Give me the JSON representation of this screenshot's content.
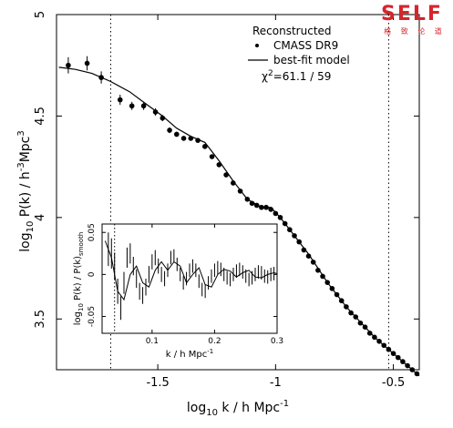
{
  "chart_data": [
    {
      "type": "scatter",
      "xlabel_parts": {
        "pre": "log",
        "sub": "10",
        "post": " k  /  h  Mpc",
        "sup": "-1"
      },
      "ylabel_parts": {
        "pre": "log",
        "sub": "10",
        "mid": " P(k)  /  h",
        "sup1": "-3",
        "mid2": "Mpc",
        "sup2": "3"
      },
      "xlim": [
        -1.93,
        -0.39
      ],
      "ylim": [
        3.25,
        5.0
      ],
      "xticks": [
        -1.5,
        -1.0,
        -0.5
      ],
      "xtick_labels": [
        "-1.5",
        "-1",
        "-0.5"
      ],
      "yticks": [
        3.5,
        4.0,
        4.5,
        5.0
      ],
      "ytick_labels": [
        "3.5",
        "4",
        "4.5",
        "5"
      ],
      "legend": {
        "title": "Reconstructed",
        "entries": [
          "CMASS DR9",
          "best-fit model"
        ],
        "chi2_prefix": "χ",
        "chi2_sup": "2",
        "chi2_value": "=61.1 / 59",
        "position": "top-right"
      },
      "vlines": [
        -1.7,
        -0.52
      ],
      "series": [
        {
          "kind": "points",
          "x": [
            -1.88,
            -1.8,
            -1.74,
            -1.66,
            -1.61,
            -1.56,
            -1.51,
            -1.48,
            -1.45,
            -1.42,
            -1.39,
            -1.36,
            -1.33,
            -1.3,
            -1.27,
            -1.24,
            -1.21,
            -1.18,
            -1.15,
            -1.12,
            -1.1,
            -1.08,
            -1.06,
            -1.04,
            -1.02,
            -1.0,
            -0.98,
            -0.96,
            -0.94,
            -0.92,
            -0.9,
            -0.88,
            -0.86,
            -0.84,
            -0.82,
            -0.8,
            -0.78,
            -0.76,
            -0.74,
            -0.72,
            -0.7,
            -0.68,
            -0.66,
            -0.64,
            -0.62,
            -0.6,
            -0.58,
            -0.56,
            -0.54,
            -0.52,
            -0.5,
            -0.48,
            -0.46,
            -0.44,
            -0.42,
            -0.4
          ],
          "y": [
            4.75,
            4.76,
            4.69,
            4.58,
            4.55,
            4.55,
            4.52,
            4.49,
            4.43,
            4.41,
            4.39,
            4.39,
            4.38,
            4.35,
            4.3,
            4.26,
            4.21,
            4.17,
            4.13,
            4.09,
            4.07,
            4.06,
            4.05,
            4.05,
            4.04,
            4.02,
            4.0,
            3.97,
            3.94,
            3.91,
            3.88,
            3.84,
            3.81,
            3.78,
            3.74,
            3.71,
            3.68,
            3.65,
            3.62,
            3.59,
            3.56,
            3.53,
            3.51,
            3.48,
            3.46,
            3.43,
            3.41,
            3.39,
            3.37,
            3.35,
            3.33,
            3.31,
            3.29,
            3.27,
            3.25,
            3.23
          ],
          "yerr": [
            0.04,
            0.035,
            0.03,
            0.025,
            0.02,
            0.02,
            0.018,
            0.015,
            0.014,
            0.012,
            0.011,
            0.01,
            0.01,
            0.009,
            0.008,
            0.008,
            0.007,
            0.007,
            0.006,
            0.006,
            0.006,
            0.006,
            0.006,
            0.005,
            0.005,
            0.005,
            0.005,
            0.005,
            0.005,
            0.005,
            0.005,
            0.005,
            0.005,
            0.005,
            0.005,
            0.005,
            0.005,
            0.005,
            0.005,
            0.005,
            0.005,
            0.005,
            0.005,
            0.005,
            0.005,
            0.005,
            0.005,
            0.005,
            0.005,
            0.005,
            0.005,
            0.005,
            0.005,
            0.005,
            0.005,
            0.005
          ]
        },
        {
          "kind": "line",
          "x": [
            -1.92,
            -1.85,
            -1.78,
            -1.7,
            -1.62,
            -1.55,
            -1.48,
            -1.42,
            -1.36,
            -1.3,
            -1.24,
            -1.18,
            -1.12,
            -1.06,
            -1.02,
            -0.98,
            -0.94,
            -0.9,
            -0.86,
            -0.82,
            -0.78,
            -0.74,
            -0.7,
            -0.66,
            -0.62,
            -0.58,
            -0.54,
            -0.5,
            -0.46,
            -0.42,
            -0.39
          ],
          "y": [
            4.74,
            4.73,
            4.71,
            4.67,
            4.62,
            4.56,
            4.5,
            4.44,
            4.4,
            4.37,
            4.28,
            4.18,
            4.09,
            4.05,
            4.05,
            4.0,
            3.94,
            3.88,
            3.82,
            3.75,
            3.68,
            3.62,
            3.56,
            3.51,
            3.46,
            3.41,
            3.37,
            3.33,
            3.29,
            3.25,
            3.22
          ]
        }
      ]
    },
    {
      "type": "line",
      "xlabel_parts": {
        "pre": "k  /  h  Mpc",
        "sup": "-1"
      },
      "ylabel_parts": {
        "pre": "log",
        "sub": "10",
        "mid": " P(k) / P(k)",
        "sub2": "smooth"
      },
      "xlim": [
        0.02,
        0.3
      ],
      "ylim": [
        -0.07,
        0.06
      ],
      "xticks": [
        0.1,
        0.2,
        0.3
      ],
      "xtick_labels": [
        "0.1",
        "0.2",
        "0.3"
      ],
      "yticks": [
        -0.05,
        0,
        0.05
      ],
      "ytick_labels": [
        "-0.05",
        "0",
        "0.05"
      ],
      "vlines": [
        0.04
      ],
      "series": [
        {
          "kind": "points",
          "x": [
            0.03,
            0.035,
            0.04,
            0.045,
            0.05,
            0.055,
            0.06,
            0.065,
            0.07,
            0.075,
            0.08,
            0.085,
            0.09,
            0.095,
            0.1,
            0.105,
            0.11,
            0.115,
            0.12,
            0.125,
            0.13,
            0.135,
            0.14,
            0.145,
            0.15,
            0.155,
            0.16,
            0.165,
            0.17,
            0.175,
            0.18,
            0.185,
            0.19,
            0.195,
            0.2,
            0.205,
            0.21,
            0.215,
            0.22,
            0.225,
            0.23,
            0.235,
            0.24,
            0.245,
            0.25,
            0.255,
            0.26,
            0.265,
            0.27,
            0.275,
            0.28,
            0.285,
            0.29,
            0.295
          ],
          "y": [
            0.03,
            0.025,
            0.01,
            -0.02,
            -0.04,
            -0.01,
            0.02,
            0.025,
            0.01,
            -0.005,
            -0.02,
            -0.025,
            -0.015,
            0.0,
            0.015,
            0.02,
            0.01,
            0.0,
            -0.005,
            0.005,
            0.02,
            0.022,
            0.012,
            0.0,
            -0.01,
            -0.005,
            0.005,
            0.01,
            0.005,
            -0.008,
            -0.018,
            -0.02,
            -0.01,
            -0.002,
            0.005,
            0.008,
            0.006,
            0.0,
            -0.004,
            -0.006,
            0.0,
            0.004,
            0.006,
            0.003,
            -0.002,
            -0.006,
            -0.004,
            0.0,
            0.003,
            0.002,
            -0.002,
            -0.003,
            0.0,
            0.001
          ],
          "yerr": [
            0.02,
            0.018,
            0.016,
            0.015,
            0.014,
            0.013,
            0.012,
            0.012,
            0.011,
            0.011,
            0.01,
            0.01,
            0.01,
            0.01,
            0.009,
            0.009,
            0.009,
            0.009,
            0.009,
            0.008,
            0.008,
            0.008,
            0.008,
            0.008,
            0.008,
            0.008,
            0.008,
            0.008,
            0.008,
            0.008,
            0.008,
            0.008,
            0.008,
            0.008,
            0.008,
            0.008,
            0.008,
            0.008,
            0.008,
            0.008,
            0.008,
            0.008,
            0.008,
            0.008,
            0.008,
            0.008,
            0.008,
            0.008,
            0.008,
            0.008,
            0.008,
            0.008,
            0.008,
            0.008
          ]
        },
        {
          "kind": "line",
          "x": [
            0.025,
            0.035,
            0.045,
            0.055,
            0.065,
            0.075,
            0.085,
            0.095,
            0.105,
            0.115,
            0.125,
            0.135,
            0.145,
            0.155,
            0.165,
            0.175,
            0.185,
            0.195,
            0.205,
            0.215,
            0.225,
            0.235,
            0.245,
            0.255,
            0.265,
            0.275,
            0.285,
            0.295,
            0.3
          ],
          "y": [
            0.04,
            0.02,
            -0.02,
            -0.03,
            0.0,
            0.01,
            -0.01,
            -0.015,
            0.005,
            0.015,
            0.005,
            0.015,
            0.01,
            -0.01,
            0.0,
            0.008,
            -0.012,
            -0.015,
            0.0,
            0.006,
            0.004,
            -0.003,
            0.002,
            0.005,
            -0.003,
            -0.004,
            0.0,
            0.002,
            0.001
          ]
        }
      ]
    }
  ],
  "logo": {
    "text": "SELF",
    "subtitle": "格 致 论 道"
  },
  "colors": {
    "logo": "#d6252b",
    "ink": "#000000",
    "background": "#ffffff"
  }
}
